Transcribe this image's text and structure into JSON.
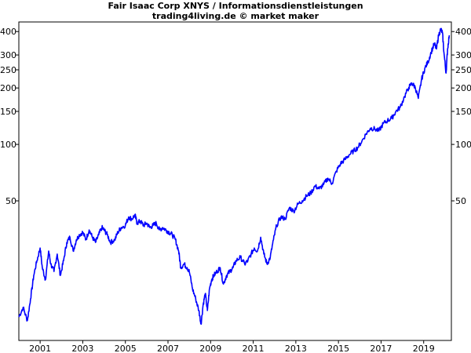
{
  "chart_data": {
    "type": "line",
    "title": "Fair Isaac Corp XNYS / Informationsdienstleistungen",
    "subtitle": "trading4living.de © market maker",
    "y_scale": "log",
    "ylim": [
      9,
      450
    ],
    "xlim": [
      2000.0,
      2020.3
    ],
    "y_ticks": [
      50,
      100,
      150,
      200,
      250,
      300,
      400
    ],
    "x_ticks": [
      "2001",
      "2003",
      "2005",
      "2007",
      "2009",
      "2011",
      "2013",
      "2015",
      "2017",
      "2019"
    ],
    "x_tick_positions": [
      2001,
      2003,
      2005,
      2007,
      2009,
      2011,
      2013,
      2015,
      2017,
      2019
    ],
    "series_color": "#0000ff",
    "series": [
      {
        "x": [
          2000.0,
          2000.2,
          2000.4,
          2000.55,
          2000.7,
          2000.85,
          2001.0,
          2001.1,
          2001.25,
          2001.4,
          2001.5,
          2001.65,
          2001.8,
          2001.95,
          2002.1,
          2002.25,
          2002.4,
          2002.55,
          2002.7,
          2002.85,
          2003.0,
          2003.15,
          2003.3,
          2003.45,
          2003.6,
          2003.75,
          2003.9,
          2004.0,
          2004.15,
          2004.3,
          2004.5,
          2004.65,
          2004.8,
          2005.0,
          2005.15,
          2005.3,
          2005.45,
          2005.55,
          2005.7,
          2005.85,
          2006.0,
          2006.15,
          2006.3,
          2006.45,
          2006.6,
          2006.75,
          2006.9,
          2007.05,
          2007.2,
          2007.35,
          2007.5,
          2007.6,
          2007.75,
          2007.9,
          2008.0,
          2008.15,
          2008.3,
          2008.45,
          2008.55,
          2008.65,
          2008.75,
          2008.85,
          2008.95,
          2009.05,
          2009.15,
          2009.3,
          2009.45,
          2009.6,
          2009.75,
          2009.9,
          2010.05,
          2010.2,
          2010.4,
          2010.6,
          2010.75,
          2010.9,
          2011.05,
          2011.2,
          2011.35,
          2011.5,
          2011.65,
          2011.8,
          2011.95,
          2012.1,
          2012.3,
          2012.5,
          2012.7,
          2012.9,
          2013.1,
          2013.3,
          2013.5,
          2013.7,
          2013.9,
          2014.1,
          2014.3,
          2014.5,
          2014.7,
          2014.9,
          2015.1,
          2015.3,
          2015.5,
          2015.7,
          2015.9,
          2016.1,
          2016.3,
          2016.5,
          2016.7,
          2016.9,
          2017.1,
          2017.3,
          2017.5,
          2017.7,
          2017.9,
          2018.1,
          2018.3,
          2018.45,
          2018.6,
          2018.75,
          2018.9,
          2019.05,
          2019.2,
          2019.35,
          2019.5,
          2019.6,
          2019.7,
          2019.8,
          2019.88,
          2019.95,
          2020.05,
          2020.12,
          2020.2
        ],
        "values": [
          12,
          13.5,
          11.5,
          15,
          20,
          24,
          28,
          22,
          19,
          27,
          23,
          21,
          26,
          20,
          24,
          30,
          32,
          27,
          31,
          33,
          34,
          31,
          35,
          32,
          30,
          33,
          36,
          35,
          33,
          30,
          31,
          34,
          36,
          37,
          41,
          40,
          42,
          38,
          39,
          37,
          38,
          36,
          37,
          38,
          35,
          36,
          35,
          34,
          33,
          31,
          27,
          22,
          23,
          22,
          21,
          17,
          15,
          13,
          11,
          14,
          16,
          13,
          17,
          19,
          20,
          21,
          22,
          18,
          20,
          21,
          22,
          24,
          25,
          23,
          24,
          26,
          28,
          27,
          32,
          26,
          23,
          25,
          31,
          37,
          41,
          40,
          46,
          44,
          48,
          50,
          53,
          55,
          60,
          58,
          61,
          66,
          62,
          72,
          79,
          83,
          88,
          92,
          96,
          104,
          114,
          122,
          121,
          118,
          129,
          134,
          138,
          150,
          158,
          180,
          201,
          212,
          202,
          176,
          222,
          254,
          275,
          310,
          345,
          323,
          382,
          412,
          395,
          310,
          240,
          320,
          382
        ]
      }
    ]
  }
}
